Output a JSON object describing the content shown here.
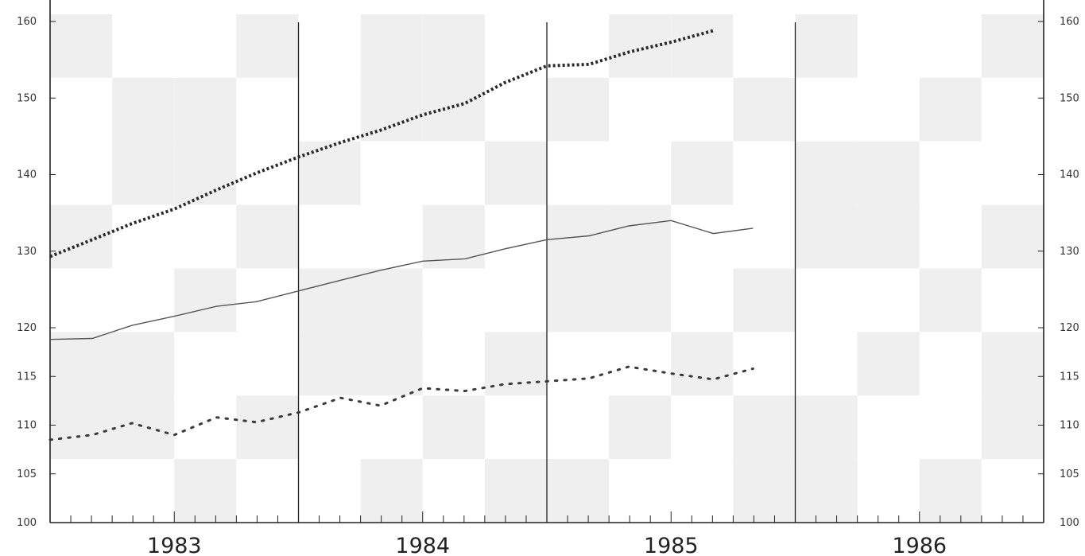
{
  "chart_data": {
    "type": "line",
    "title": "",
    "xlabel": "",
    "ylabel": "",
    "x": [
      1982.5,
      1982.67,
      1982.83,
      1983.0,
      1983.17,
      1983.33,
      1983.5,
      1983.67,
      1983.83,
      1984.0,
      1984.17,
      1984.33,
      1984.5,
      1984.67,
      1984.83,
      1985.0,
      1985.17,
      1985.33,
      1985.5,
      1985.67,
      1985.83
    ],
    "xlim": [
      1982.5,
      1986.5
    ],
    "ylim": [
      100,
      160
    ],
    "y_ticks_major": [
      100,
      105,
      110,
      115,
      120,
      130,
      140,
      150,
      160
    ],
    "y_tick_labels": [
      "100",
      "105",
      "110",
      "115",
      "120",
      "130",
      "140",
      "150",
      "160"
    ],
    "year_labels": [
      {
        "label": "1983",
        "x": 1983.0
      },
      {
        "label": "1984",
        "x": 1984.0
      },
      {
        "label": "1985",
        "x": 1985.0
      },
      {
        "label": "1986",
        "x": 1986.0
      }
    ],
    "year_dividers": [
      1983.5,
      1984.5,
      1985.5
    ],
    "grid": false,
    "legend": "none",
    "series": [
      {
        "style": "heavy-dotted",
        "color": "#2a2a2a",
        "values": [
          129.3,
          131.5,
          133.6,
          135.5,
          138.0,
          140.2,
          142.3,
          144.2,
          145.8,
          147.8,
          149.3,
          152.0,
          154.2,
          154.4,
          156.0,
          157.3,
          158.8,
          null,
          null,
          null,
          null
        ]
      },
      {
        "style": "solid-thin",
        "color": "#555555",
        "values": [
          118.8,
          118.9,
          120.3,
          121.5,
          122.8,
          123.4,
          124.8,
          126.2,
          127.5,
          128.7,
          129.0,
          130.3,
          131.5,
          132.0,
          133.3,
          134.0,
          132.3,
          133.0,
          null,
          null,
          null
        ]
      },
      {
        "style": "light-dotted",
        "color": "#3a3a3a",
        "values": [
          108.5,
          109.0,
          110.2,
          109.0,
          110.8,
          110.3,
          111.3,
          112.8,
          112.0,
          113.8,
          113.5,
          114.2,
          114.5,
          114.8,
          116.0,
          115.3,
          114.7,
          115.8,
          null,
          null,
          null
        ]
      }
    ]
  }
}
